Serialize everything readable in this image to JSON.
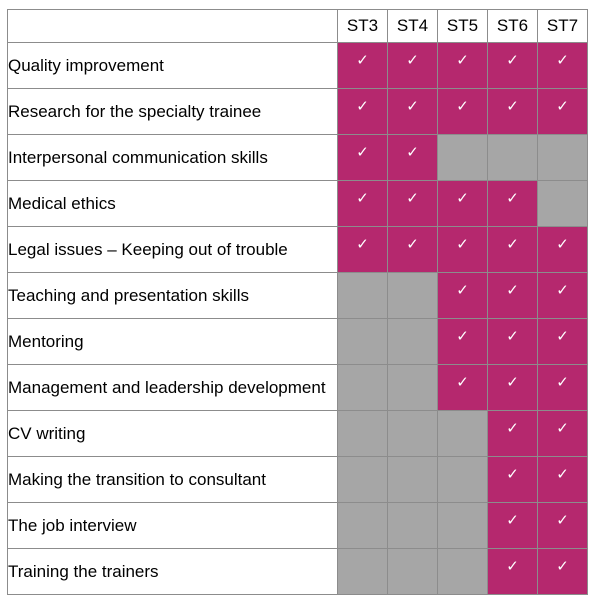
{
  "stages": [
    "ST3",
    "ST4",
    "ST5",
    "ST6",
    "ST7"
  ],
  "check_glyph": "✓",
  "colors": {
    "included": "#b5286e",
    "not_included": "#a6a6a6",
    "check": "#ffffff"
  },
  "rows": [
    {
      "label": "Quality improvement",
      "cells": [
        true,
        true,
        true,
        true,
        true
      ]
    },
    {
      "label": "Research for the specialty trainee",
      "cells": [
        true,
        true,
        true,
        true,
        true
      ]
    },
    {
      "label": "Interpersonal communication skills",
      "cells": [
        true,
        true,
        false,
        false,
        false
      ]
    },
    {
      "label": "Medical ethics",
      "cells": [
        true,
        true,
        true,
        true,
        false
      ]
    },
    {
      "label": "Legal issues – Keeping out of trouble",
      "cells": [
        true,
        true,
        true,
        true,
        true
      ]
    },
    {
      "label": "Teaching and presentation skills",
      "cells": [
        false,
        false,
        true,
        true,
        true
      ]
    },
    {
      "label": "Mentoring",
      "cells": [
        false,
        false,
        true,
        true,
        true
      ]
    },
    {
      "label": "Management and leadership development",
      "cells": [
        false,
        false,
        true,
        true,
        true
      ]
    },
    {
      "label": "CV writing",
      "cells": [
        false,
        false,
        false,
        true,
        true
      ]
    },
    {
      "label": "Making the transition to consultant",
      "cells": [
        false,
        false,
        false,
        true,
        true
      ]
    },
    {
      "label": "The job interview",
      "cells": [
        false,
        false,
        false,
        true,
        true
      ]
    },
    {
      "label": "Training the trainers",
      "cells": [
        false,
        false,
        false,
        true,
        true
      ]
    }
  ]
}
